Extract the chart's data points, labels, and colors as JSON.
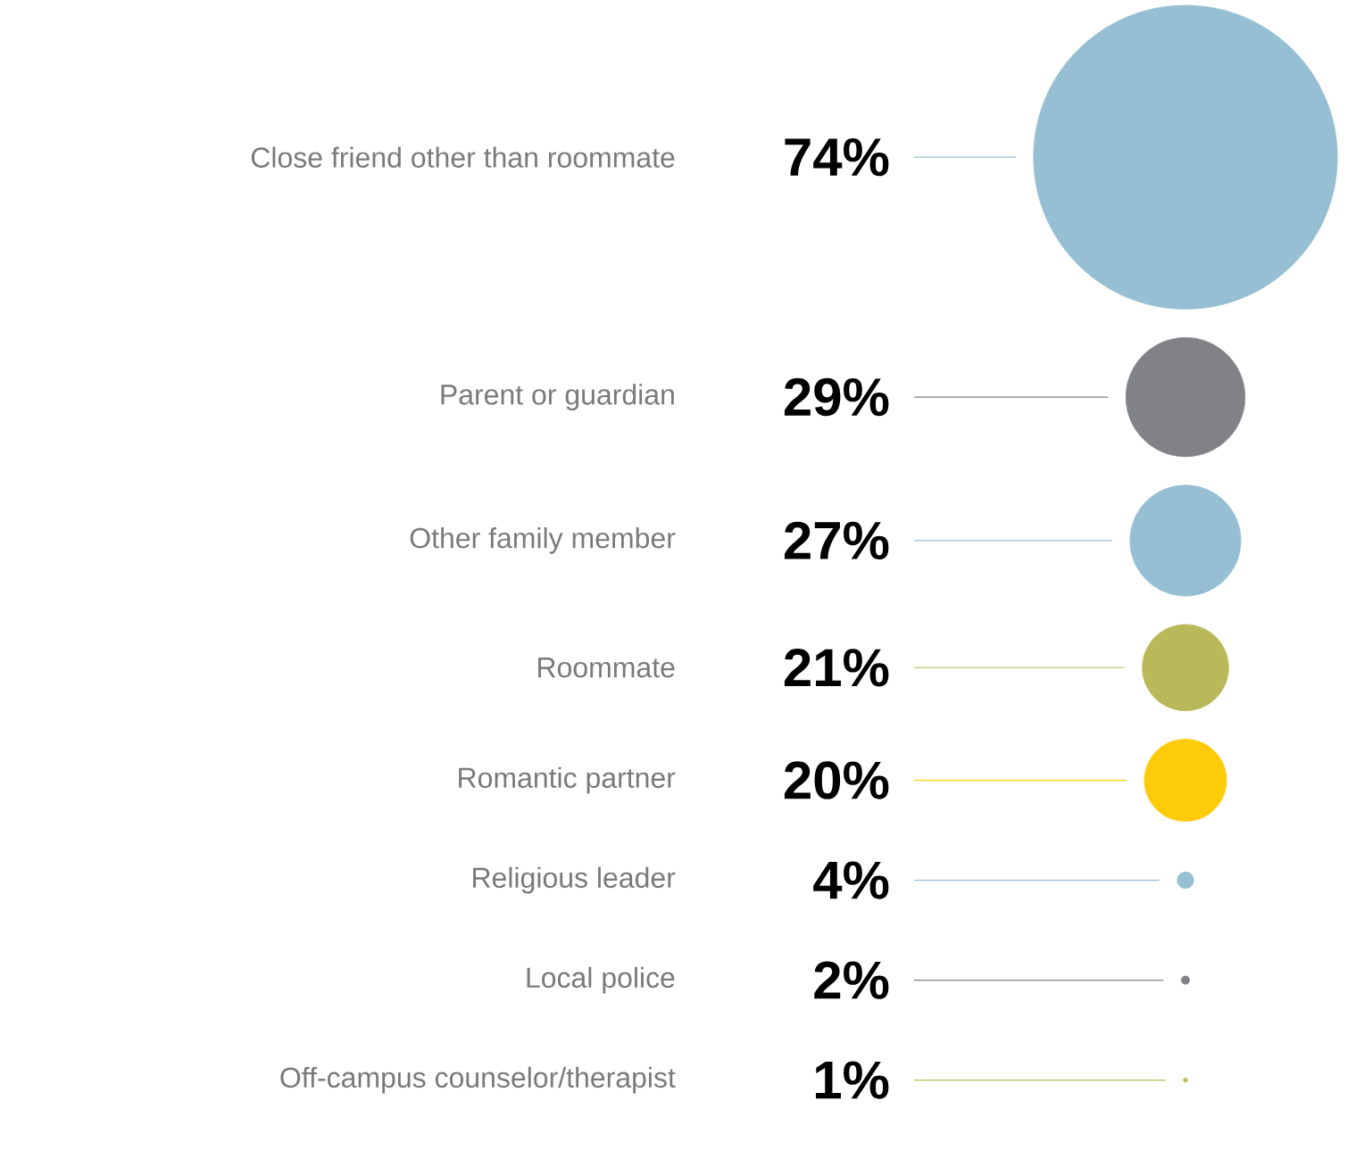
{
  "chart_data": {
    "type": "other",
    "categories": [
      "Close friend other than roommate",
      "Parent or guardian",
      "Other family member",
      "Roommate",
      "Romantic partner",
      "Religious leader",
      "Local police",
      "Off-campus counselor/therapist"
    ],
    "values": [
      74,
      29,
      27,
      21,
      20,
      4,
      2,
      1
    ],
    "value_labels": [
      "74%",
      "29%",
      "27%",
      "21%",
      "20%",
      "4%",
      "2%",
      "1%"
    ],
    "colors": [
      "#97bfd3",
      "#808285",
      "#97bfd3",
      "#bab95a",
      "#fecb0a",
      "#97bfd3",
      "#808285",
      "#bab95a"
    ]
  }
}
